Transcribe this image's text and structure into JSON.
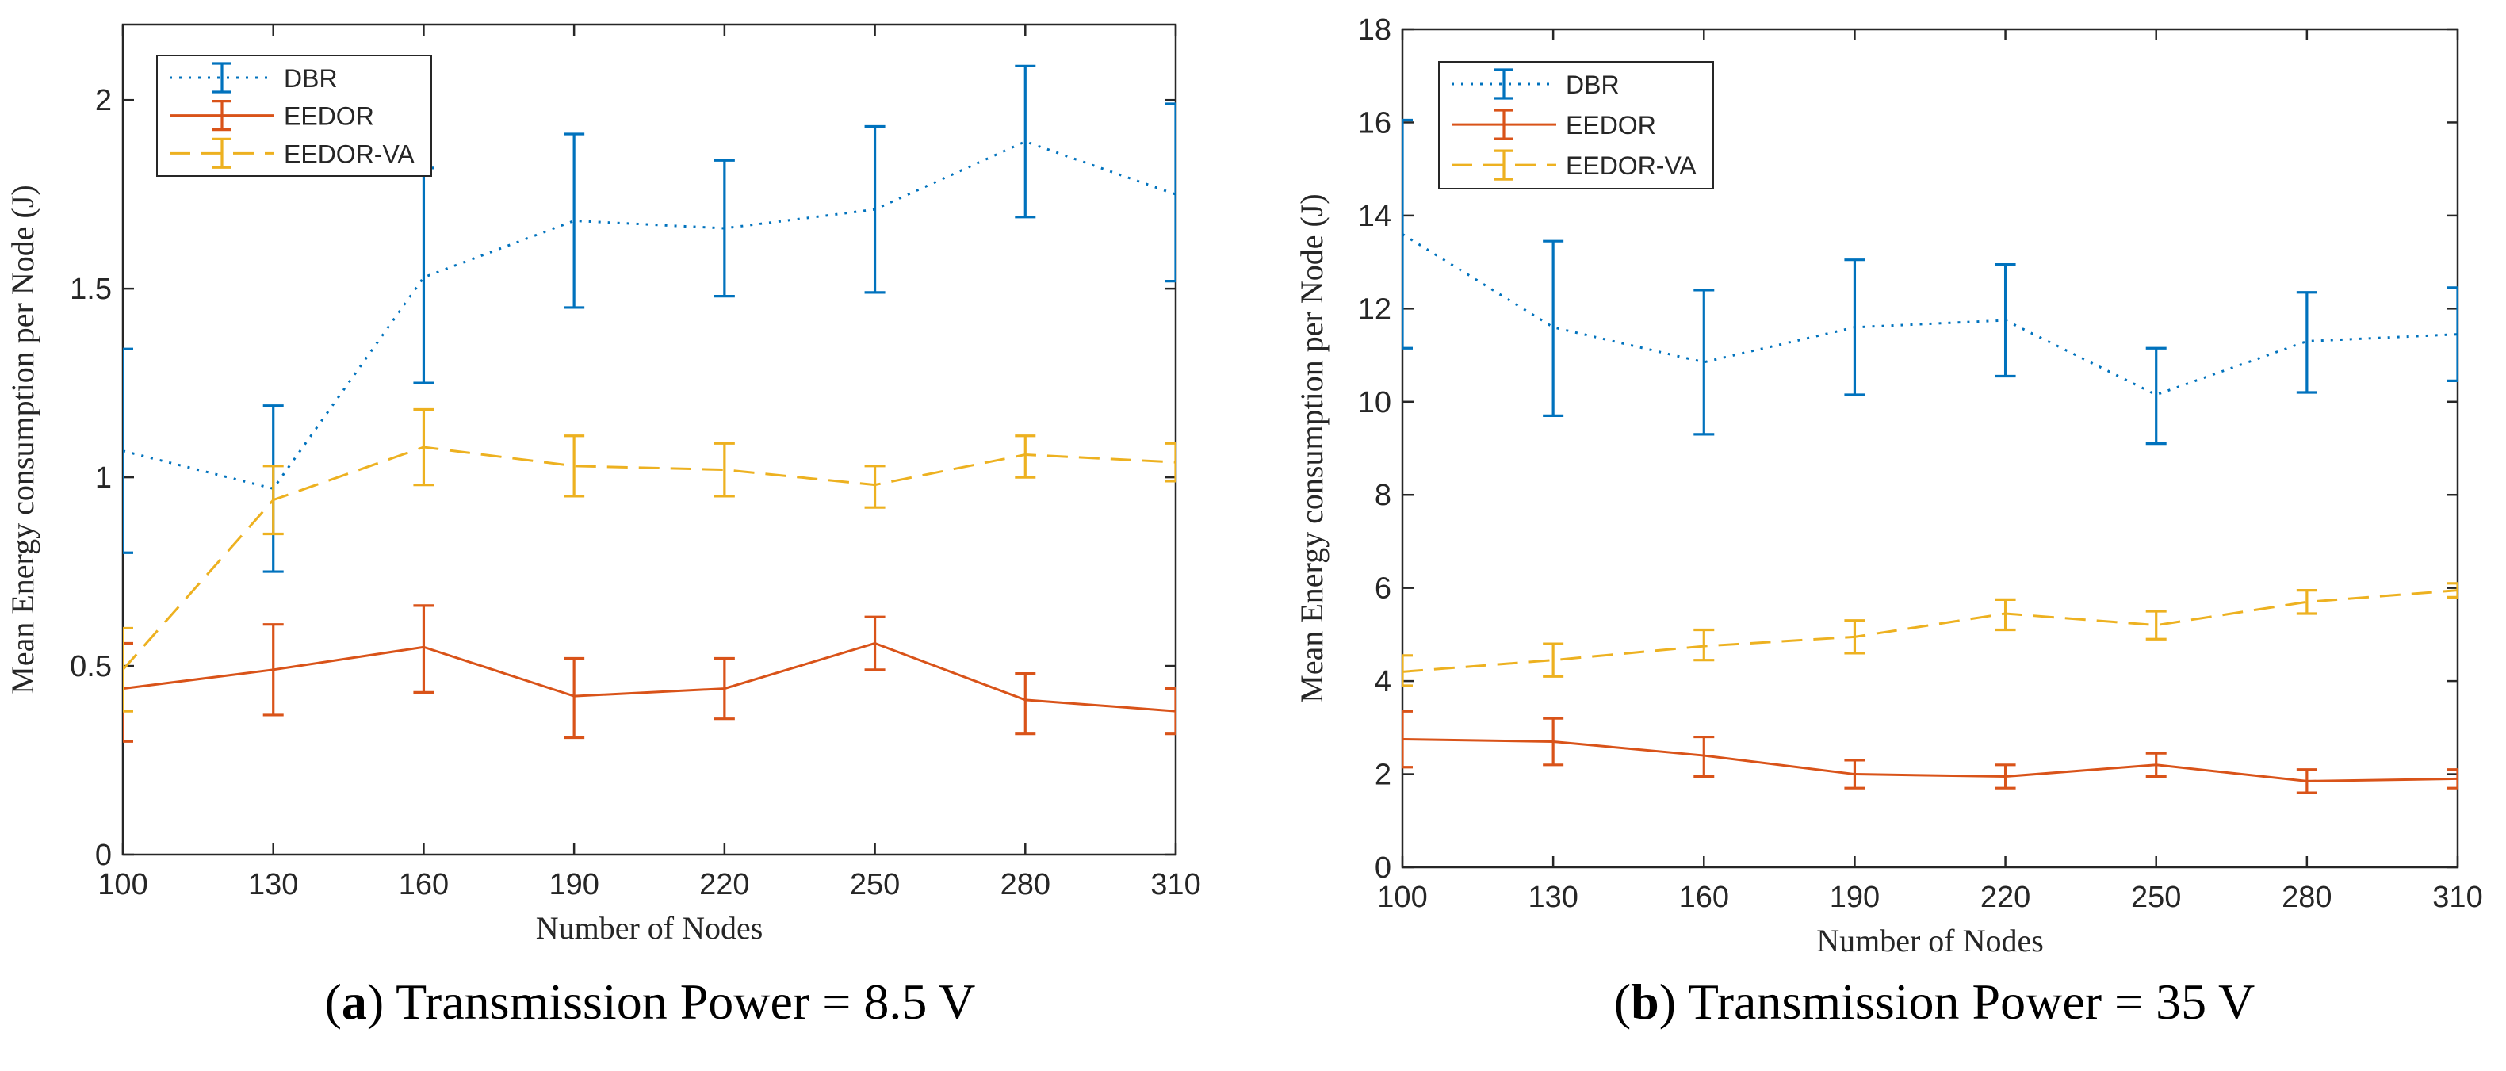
{
  "chart_data": [
    {
      "type": "line",
      "panel": "a",
      "caption_letter": "a",
      "caption_rest": " Transmission Power = 8.5 V",
      "xlabel": "Number of Nodes",
      "ylabel": "Mean Energy consumption per Node (J)",
      "xlim": [
        100,
        310
      ],
      "ylim": [
        0,
        2.2
      ],
      "xticks": [
        100,
        130,
        160,
        190,
        220,
        250,
        280,
        310
      ],
      "xtick_labels": [
        "100",
        "130",
        "160",
        "190",
        "220",
        "250",
        "280",
        "310"
      ],
      "yticks": [
        0,
        0.5,
        1,
        1.5,
        2
      ],
      "ytick_labels": [
        "0",
        "0.5",
        "1",
        "1.5",
        "2"
      ],
      "legend_position": "top-left",
      "x": [
        100,
        130,
        160,
        190,
        220,
        250,
        280,
        310
      ],
      "series": [
        {
          "name": "DBR",
          "color": "#0072BD",
          "style": "dotted",
          "values": [
            1.07,
            0.97,
            1.53,
            1.68,
            1.66,
            1.71,
            1.89,
            1.75
          ],
          "err_low": [
            0.8,
            0.75,
            1.25,
            1.45,
            1.48,
            1.49,
            1.69,
            1.52
          ],
          "err_high": [
            1.34,
            1.19,
            1.82,
            1.91,
            1.84,
            1.93,
            2.09,
            1.99
          ]
        },
        {
          "name": "EEDOR",
          "color": "#D95319",
          "style": "solid",
          "values": [
            0.44,
            0.49,
            0.55,
            0.42,
            0.44,
            0.56,
            0.41,
            0.38
          ],
          "err_low": [
            0.3,
            0.37,
            0.43,
            0.31,
            0.36,
            0.49,
            0.32,
            0.32
          ],
          "err_high": [
            0.56,
            0.61,
            0.66,
            0.52,
            0.52,
            0.63,
            0.48,
            0.44
          ]
        },
        {
          "name": "EEDOR-VA",
          "color": "#EDB120",
          "style": "dashed",
          "values": [
            0.49,
            0.94,
            1.08,
            1.03,
            1.02,
            0.98,
            1.06,
            1.04
          ],
          "err_low": [
            0.38,
            0.85,
            0.98,
            0.95,
            0.95,
            0.92,
            1.0,
            0.99
          ],
          "err_high": [
            0.6,
            1.03,
            1.18,
            1.11,
            1.09,
            1.03,
            1.11,
            1.09
          ]
        }
      ]
    },
    {
      "type": "line",
      "panel": "b",
      "caption_letter": "b",
      "caption_rest": " Transmission Power = 35 V",
      "xlabel": "Number of Nodes",
      "ylabel": "Mean Energy consumption per Node (J)",
      "xlim": [
        100,
        310
      ],
      "ylim": [
        0,
        18
      ],
      "xticks": [
        100,
        130,
        160,
        190,
        220,
        250,
        280,
        310
      ],
      "xtick_labels": [
        "100",
        "130",
        "160",
        "190",
        "220",
        "250",
        "280",
        "310"
      ],
      "yticks": [
        0,
        2,
        4,
        6,
        8,
        10,
        12,
        14,
        16,
        18
      ],
      "ytick_labels": [
        "0",
        "2",
        "4",
        "6",
        "8",
        "10",
        "12",
        "14",
        "16",
        "18"
      ],
      "legend_position": "top-left",
      "x": [
        100,
        130,
        160,
        190,
        220,
        250,
        280,
        310
      ],
      "series": [
        {
          "name": "DBR",
          "color": "#0072BD",
          "style": "dotted",
          "values": [
            13.6,
            11.6,
            10.85,
            11.6,
            11.75,
            10.15,
            11.3,
            11.45
          ],
          "err_low": [
            11.15,
            9.7,
            9.3,
            10.15,
            10.55,
            9.1,
            10.2,
            10.45
          ],
          "err_high": [
            16.05,
            13.45,
            12.4,
            13.05,
            12.95,
            11.15,
            12.35,
            12.45
          ]
        },
        {
          "name": "EEDOR",
          "color": "#D95319",
          "style": "solid",
          "values": [
            2.75,
            2.7,
            2.4,
            2.0,
            1.95,
            2.2,
            1.85,
            1.9
          ],
          "err_low": [
            2.15,
            2.2,
            1.95,
            1.7,
            1.7,
            1.95,
            1.6,
            1.7
          ],
          "err_high": [
            3.35,
            3.2,
            2.8,
            2.3,
            2.2,
            2.45,
            2.1,
            2.1
          ]
        },
        {
          "name": "EEDOR-VA",
          "color": "#EDB120",
          "style": "dashed",
          "values": [
            4.2,
            4.45,
            4.75,
            4.95,
            5.45,
            5.2,
            5.7,
            5.95
          ],
          "err_low": [
            3.9,
            4.1,
            4.45,
            4.6,
            5.1,
            4.9,
            5.45,
            5.8
          ],
          "err_high": [
            4.55,
            4.8,
            5.1,
            5.3,
            5.75,
            5.5,
            5.95,
            6.1
          ]
        }
      ]
    }
  ]
}
